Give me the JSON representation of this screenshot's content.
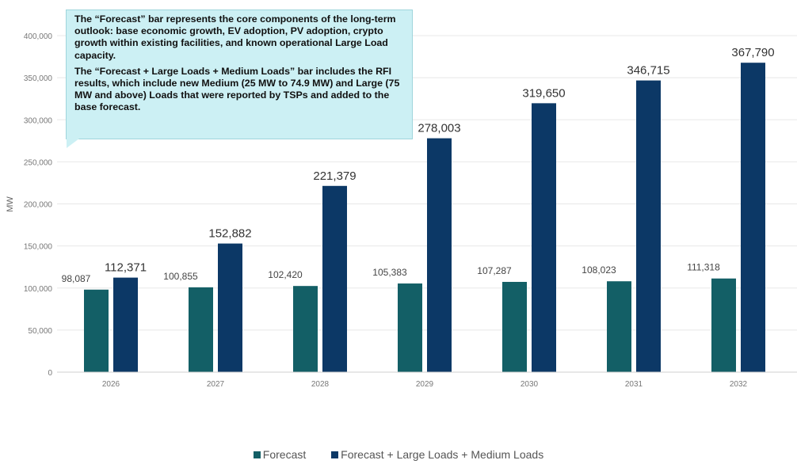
{
  "colors": {
    "forecast": "#135f66",
    "forecast_large": "#0c3866"
  },
  "callout": {
    "paragraph_1": "The “Forecast” bar represents the core components of the long-term outlook: base economic growth, EV adoption, PV adoption, crypto growth within existing facilities, and known operational Large Load capacity.",
    "paragraph_2": "The “Forecast + Large Loads + Medium Loads” bar includes the RFI results, which include new Medium (25 MW to 74.9 MW) and Large (75 MW and above) Loads that were reported by TSPs and added to the base forecast."
  },
  "chart_data": {
    "type": "bar",
    "title": "",
    "xlabel": "",
    "ylabel": "MW",
    "ylim": [
      0,
      400000
    ],
    "y_ticks": [
      "0",
      "50,000",
      "100,000",
      "150,000",
      "200,000",
      "250,000",
      "300,000",
      "350,000",
      "400,000"
    ],
    "categories": [
      "2026",
      "2027",
      "2028",
      "2029",
      "2030",
      "2031",
      "2032"
    ],
    "series": [
      {
        "name": "Forecast",
        "values": [
          98087,
          100855,
          102420,
          105383,
          107287,
          108023,
          111318
        ],
        "labels": [
          "98,087",
          "100,855",
          "102,420",
          "105,383",
          "107,287",
          "108,023",
          "111,318"
        ]
      },
      {
        "name": "Forecast + Large Loads + Medium Loads",
        "values": [
          112371,
          152882,
          221379,
          278003,
          319650,
          346715,
          367790
        ],
        "labels": [
          "112,371",
          "152,882",
          "221,379",
          "278,003",
          "319,650",
          "346,715",
          "367,790"
        ]
      }
    ],
    "grid": true,
    "legend_position": "bottom"
  }
}
